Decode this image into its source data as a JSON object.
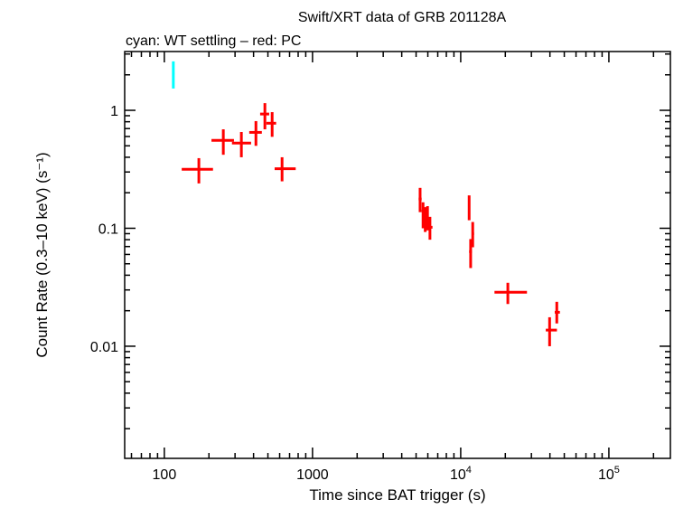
{
  "chart_data": {
    "type": "scatter",
    "title": "Swift/XRT data of GRB 201128A",
    "subtitle": "cyan: WT settling – red: PC",
    "xlabel": "Time since BAT trigger (s)",
    "ylabel": "Count Rate (0.3–10 keV) (s⁻¹)",
    "xscale": "log",
    "yscale": "log",
    "xlim": [
      54,
      260000
    ],
    "ylim": [
      0.00112,
      3.15
    ],
    "grid": false,
    "x_ticks": [
      {
        "v": 100,
        "label": "100"
      },
      {
        "v": 1000,
        "label": "1000"
      },
      {
        "v": 10000,
        "label": "10",
        "sup": "4"
      },
      {
        "v": 100000,
        "label": "10",
        "sup": "5"
      }
    ],
    "y_ticks": [
      {
        "v": 1,
        "label": "1"
      },
      {
        "v": 0.1,
        "label": "0.1"
      },
      {
        "v": 0.01,
        "label": "0.01"
      }
    ],
    "series": [
      {
        "name": "WT settling",
        "color": "#00ffff",
        "points": [
          {
            "x": 115,
            "y": 2.06,
            "xlo": 113,
            "xhi": 117,
            "ylo": 1.53,
            "yhi": 2.6
          }
        ]
      },
      {
        "name": "PC",
        "color": "#ff0000",
        "points": [
          {
            "x": 171,
            "y": 0.316,
            "xlo": 131,
            "xhi": 213,
            "ylo": 0.24,
            "yhi": 0.393
          },
          {
            "x": 250,
            "y": 0.556,
            "xlo": 208,
            "xhi": 295,
            "ylo": 0.42,
            "yhi": 0.69
          },
          {
            "x": 331,
            "y": 0.527,
            "xlo": 286,
            "xhi": 385,
            "ylo": 0.4,
            "yhi": 0.655
          },
          {
            "x": 415,
            "y": 0.65,
            "xlo": 374,
            "xhi": 455,
            "ylo": 0.5,
            "yhi": 0.81
          },
          {
            "x": 477,
            "y": 0.93,
            "xlo": 443,
            "xhi": 510,
            "ylo": 0.69,
            "yhi": 1.15
          },
          {
            "x": 534,
            "y": 0.777,
            "xlo": 488,
            "xhi": 568,
            "ylo": 0.596,
            "yhi": 0.965
          },
          {
            "x": 623,
            "y": 0.32,
            "xlo": 555,
            "xhi": 770,
            "ylo": 0.25,
            "yhi": 0.4
          },
          {
            "x": 5320,
            "y": 0.177,
            "xlo": 5200,
            "xhi": 5450,
            "ylo": 0.137,
            "yhi": 0.22
          },
          {
            "x": 5570,
            "y": 0.14,
            "xlo": 5450,
            "xhi": 5680,
            "ylo": 0.1,
            "yhi": 0.166
          },
          {
            "x": 5760,
            "y": 0.121,
            "xlo": 5680,
            "xhi": 5860,
            "ylo": 0.093,
            "yhi": 0.151
          },
          {
            "x": 5970,
            "y": 0.111,
            "xlo": 5860,
            "xhi": 6080,
            "ylo": 0.096,
            "yhi": 0.154
          },
          {
            "x": 6200,
            "y": 0.102,
            "xlo": 6080,
            "xhi": 6450,
            "ylo": 0.08,
            "yhi": 0.125
          },
          {
            "x": 11400,
            "y": 0.153,
            "xlo": 11200,
            "xhi": 11600,
            "ylo": 0.117,
            "yhi": 0.19
          },
          {
            "x": 12050,
            "y": 0.09,
            "xlo": 11850,
            "xhi": 12300,
            "ylo": 0.069,
            "yhi": 0.113
          },
          {
            "x": 11670,
            "y": 0.0634,
            "xlo": 11400,
            "xhi": 11900,
            "ylo": 0.046,
            "yhi": 0.081
          },
          {
            "x": 20800,
            "y": 0.0287,
            "xlo": 16900,
            "xhi": 28000,
            "ylo": 0.0228,
            "yhi": 0.0345
          },
          {
            "x": 39800,
            "y": 0.0137,
            "xlo": 37500,
            "xhi": 44600,
            "ylo": 0.01,
            "yhi": 0.0176
          },
          {
            "x": 44500,
            "y": 0.0194,
            "xlo": 43100,
            "xhi": 46700,
            "ylo": 0.0156,
            "yhi": 0.0238
          }
        ]
      }
    ]
  }
}
